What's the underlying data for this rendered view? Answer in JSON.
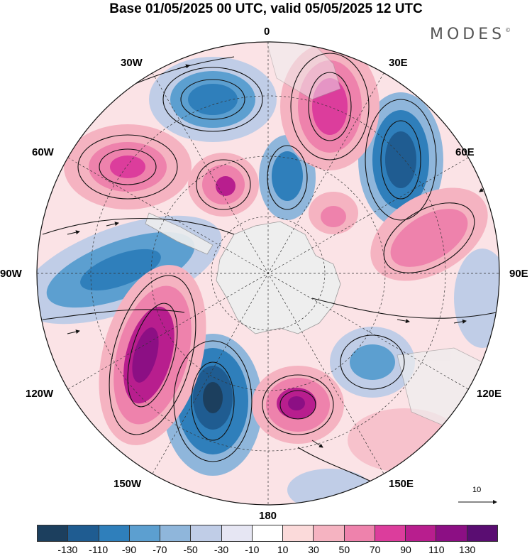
{
  "title": "Base 01/05/2025 00 UTC, valid 05/05/2025 12 UTC",
  "brand": "MODES",
  "brand_mark": "©",
  "lon_labels": {
    "l0": "0",
    "l30e": "30E",
    "l60e": "60E",
    "l90e": "90E",
    "l120e": "120E",
    "l150e": "150E",
    "l180": "180",
    "l150w": "150W",
    "l120w": "120W",
    "l90w": "90W",
    "l60w": "60W",
    "l30w": "30W"
  },
  "reference_vector_label": "10",
  "colorbar": {
    "colors": [
      "#1c3f5e",
      "#1f5c91",
      "#2f7fbb",
      "#5c9fd0",
      "#8fb6db",
      "#c0cde7",
      "#e6e6f3",
      "#ffffff",
      "#fbdada",
      "#f5b3c1",
      "#ee82ac",
      "#dc3d9c",
      "#b81e8e",
      "#8c0f84",
      "#5a0d72"
    ],
    "labels": [
      "-130",
      "-110",
      "-90",
      "-70",
      "-50",
      "-30",
      "-10",
      "10",
      "30",
      "50",
      "70",
      "90",
      "110",
      "130"
    ]
  }
}
